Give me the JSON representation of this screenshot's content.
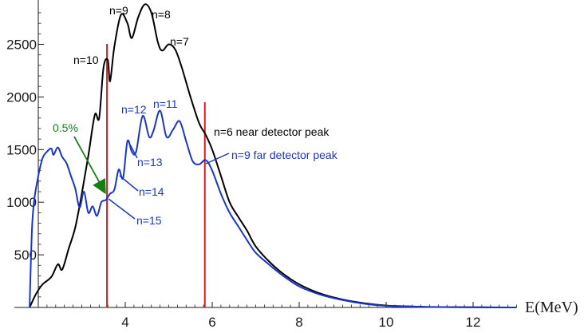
{
  "chart_data": {
    "type": "line",
    "title": "",
    "xlabel": "E(MeV)",
    "ylabel": "",
    "xlim": [
      1.8,
      13.0
    ],
    "ylim": [
      0,
      2900
    ],
    "x_ticks": [
      4,
      6,
      8,
      10,
      12
    ],
    "x_tick_labels": [
      "4",
      "6",
      "8",
      "10",
      "12"
    ],
    "y_ticks": [
      500,
      1000,
      1500,
      2000,
      2500
    ],
    "y_tick_labels": [
      "500",
      "1000",
      "1500",
      "2000",
      "2500"
    ],
    "grid": false,
    "colors": {
      "near": "#000000",
      "far": "#1a35c8",
      "marker": "#e0161b",
      "arrow": "#118011"
    },
    "series": [
      {
        "name": "near detector",
        "color": "#000000",
        "points": [
          [
            1.8,
            0
          ],
          [
            1.95,
            130
          ],
          [
            2.1,
            220
          ],
          [
            2.3,
            290
          ],
          [
            2.45,
            410
          ],
          [
            2.55,
            360
          ],
          [
            2.7,
            560
          ],
          [
            2.85,
            760
          ],
          [
            3.0,
            1080
          ],
          [
            3.15,
            1440
          ],
          [
            3.3,
            1830
          ],
          [
            3.4,
            1800
          ],
          [
            3.5,
            2280
          ],
          [
            3.6,
            2350
          ],
          [
            3.65,
            2150
          ],
          [
            3.75,
            2480
          ],
          [
            3.9,
            2780
          ],
          [
            4.05,
            2700
          ],
          [
            4.15,
            2560
          ],
          [
            4.3,
            2760
          ],
          [
            4.45,
            2880
          ],
          [
            4.6,
            2800
          ],
          [
            4.75,
            2520
          ],
          [
            4.85,
            2440
          ],
          [
            5.0,
            2500
          ],
          [
            5.15,
            2450
          ],
          [
            5.3,
            2280
          ],
          [
            5.5,
            2000
          ],
          [
            5.7,
            1750
          ],
          [
            5.85,
            1640
          ],
          [
            6.0,
            1500
          ],
          [
            6.2,
            1250
          ],
          [
            6.4,
            1000
          ],
          [
            6.6,
            860
          ],
          [
            6.8,
            730
          ],
          [
            7.0,
            580
          ],
          [
            7.3,
            440
          ],
          [
            7.6,
            330
          ],
          [
            8.0,
            220
          ],
          [
            8.5,
            130
          ],
          [
            9.0,
            75
          ],
          [
            9.5,
            40
          ],
          [
            10.0,
            18
          ],
          [
            10.5,
            10
          ],
          [
            11.0,
            5
          ],
          [
            12.0,
            2
          ],
          [
            13.0,
            0
          ]
        ]
      },
      {
        "name": "far detector",
        "color": "#1a35c8",
        "points": [
          [
            1.8,
            0
          ],
          [
            1.85,
            700
          ],
          [
            1.9,
            1000
          ],
          [
            2.0,
            1250
          ],
          [
            2.1,
            1420
          ],
          [
            2.2,
            1480
          ],
          [
            2.3,
            1510
          ],
          [
            2.35,
            1450
          ],
          [
            2.45,
            1520
          ],
          [
            2.55,
            1430
          ],
          [
            2.65,
            1370
          ],
          [
            2.75,
            1250
          ],
          [
            2.85,
            1130
          ],
          [
            2.95,
            950
          ],
          [
            3.05,
            1100
          ],
          [
            3.15,
            900
          ],
          [
            3.25,
            960
          ],
          [
            3.35,
            870
          ],
          [
            3.45,
            1000
          ],
          [
            3.55,
            1020
          ],
          [
            3.65,
            1080
          ],
          [
            3.75,
            1120
          ],
          [
            3.85,
            1310
          ],
          [
            3.95,
            1230
          ],
          [
            4.05,
            1580
          ],
          [
            4.15,
            1480
          ],
          [
            4.25,
            1480
          ],
          [
            4.4,
            1820
          ],
          [
            4.55,
            1620
          ],
          [
            4.65,
            1680
          ],
          [
            4.8,
            1870
          ],
          [
            4.95,
            1620
          ],
          [
            5.1,
            1690
          ],
          [
            5.25,
            1770
          ],
          [
            5.4,
            1580
          ],
          [
            5.55,
            1390
          ],
          [
            5.7,
            1360
          ],
          [
            5.85,
            1400
          ],
          [
            6.0,
            1300
          ],
          [
            6.2,
            1080
          ],
          [
            6.4,
            900
          ],
          [
            6.6,
            770
          ],
          [
            6.8,
            640
          ],
          [
            7.0,
            520
          ],
          [
            7.3,
            410
          ],
          [
            7.6,
            310
          ],
          [
            8.0,
            200
          ],
          [
            8.5,
            120
          ],
          [
            9.0,
            70
          ],
          [
            9.5,
            35
          ],
          [
            10.0,
            15
          ],
          [
            11.0,
            4
          ],
          [
            13.0,
            0
          ]
        ]
      }
    ],
    "vertical_markers": [
      3.58,
      5.83
    ],
    "annotations": {
      "near_peaks": [
        {
          "label": "n=10",
          "at": [
            3.55,
            2350
          ]
        },
        {
          "label": "n=9",
          "at": [
            3.9,
            2780
          ]
        },
        {
          "label": "n=8",
          "at": [
            4.45,
            2880
          ]
        },
        {
          "label": "n=7",
          "at": [
            5.0,
            2500
          ]
        }
      ],
      "near_detector_peak": "n=6 near detector peak",
      "far_peaks": [
        {
          "label": "n=12",
          "at": [
            4.4,
            1820
          ]
        },
        {
          "label": "n=11",
          "at": [
            4.8,
            1870
          ]
        }
      ],
      "far_leader_labels": [
        {
          "label": "n=13",
          "from": [
            4.05,
            1480
          ]
        },
        {
          "label": "n=14",
          "from": [
            3.85,
            1310
          ]
        },
        {
          "label": "n=15",
          "from": [
            3.58,
            1080
          ]
        }
      ],
      "far_detector_peak": "n=9 far detector peak",
      "percent_label": "0.5%"
    }
  }
}
